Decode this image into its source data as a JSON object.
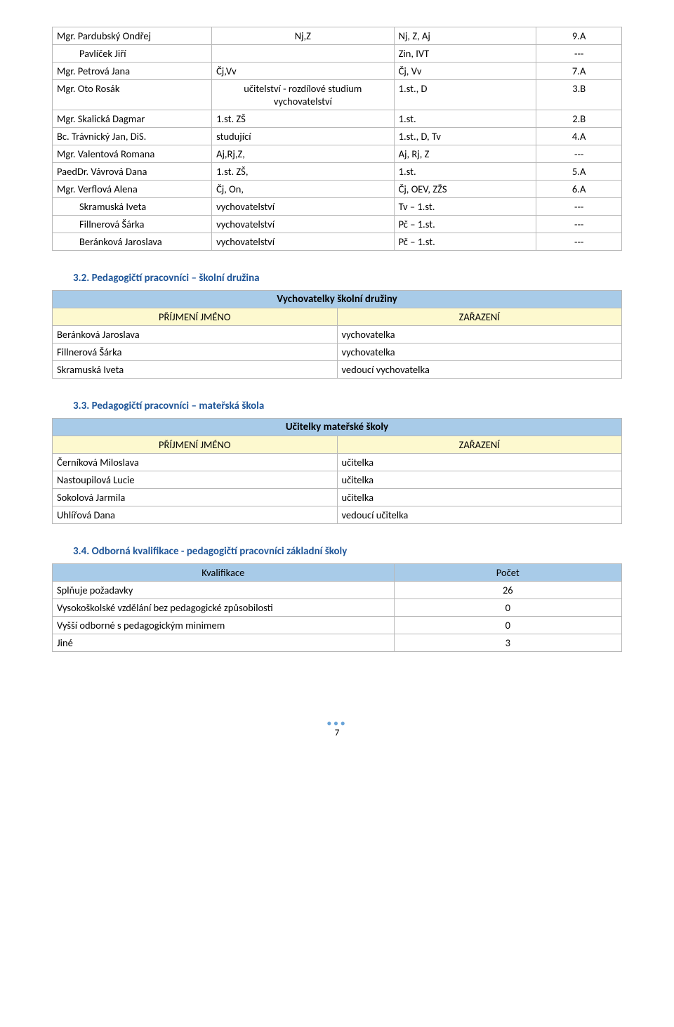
{
  "table1": {
    "rows": [
      [
        "Mgr. Pardubský Ondřej",
        "Nj,Z",
        "Nj, Z, Aj",
        "9.A"
      ],
      [
        "Pavlíček Jiří",
        "",
        "Zin, IVT",
        "---"
      ],
      [
        "Mgr. Petrová Jana",
        "Čj,Vv",
        "Čj, Vv",
        "7.A"
      ],
      [
        "Mgr. Oto Rosák",
        "učitelství - rozdílové studium vychovatelství",
        "1.st., D",
        "3.B"
      ],
      [
        "Mgr. Skalická Dagmar",
        "1.st. ZŠ",
        "1.st.",
        "2.B"
      ],
      [
        "Bc.    Trávnický Jan,  DiS.",
        "studující",
        "1.st., D, Tv",
        "4.A"
      ],
      [
        "Mgr. Valentová Romana",
        "Aj,Rj,Z,",
        "Aj, Rj, Z",
        "---"
      ],
      [
        "PaedDr. Vávrová Dana",
        "1.st. ZŠ,",
        "1.st.",
        "5.A"
      ],
      [
        "Mgr. Verflová Alena",
        "Čj, On,",
        "Čj, OEV, ZŽS",
        "6.A"
      ],
      [
        "Skramuská Iveta",
        "vychovatelství",
        "Tv – 1.st.",
        "---"
      ],
      [
        "Fillnerová Šárka",
        "vychovatelství",
        "Pč – 1.st.",
        "---"
      ],
      [
        "Beránková Jaroslava",
        "vychovatelství",
        "Pč – 1.st.",
        "---"
      ]
    ],
    "indent_rows": [
      1,
      9,
      10,
      11
    ],
    "col2_center_rows": [
      0,
      3
    ]
  },
  "sec32": {
    "heading": "3.2. Pedagogičtí pracovníci – školní družina",
    "title": "Vychovatelky školní družiny",
    "hdr": [
      "PŘÍJMENÍ JMÉNO",
      "ZAŘAZENÍ"
    ],
    "rows": [
      [
        "Beránková Jaroslava",
        "vychovatelka"
      ],
      [
        "Fillnerová Šárka",
        "vychovatelka"
      ],
      [
        "Skramuská Iveta",
        "vedoucí vychovatelka"
      ]
    ]
  },
  "sec33": {
    "heading": "3.3. Pedagogičtí pracovníci – mateřská škola",
    "title": "Učitelky mateřské školy",
    "hdr": [
      "PŘÍJMENÍ JMÉNO",
      "ZAŘAZENÍ"
    ],
    "rows": [
      [
        "Černíková Miloslava",
        "učitelka"
      ],
      [
        "Nastoupilová Lucie",
        "učitelka"
      ],
      [
        "Sokolová Jarmila",
        "učitelka"
      ],
      [
        "Uhlířová Dana",
        "vedoucí učitelka"
      ]
    ]
  },
  "sec34": {
    "heading": "3.4. Odborná kvalifikace - pedagogičtí pracovníci základní školy",
    "hdr": [
      "Kvalifikace",
      "Počet"
    ],
    "rows": [
      [
        "Splňuje požadavky",
        "26"
      ],
      [
        "Vysokoškolské vzdělání bez pedagogické způsobilosti",
        "0"
      ],
      [
        "Vyšší odborné s pedagogickým minimem",
        "0"
      ],
      [
        "Jiné",
        "3"
      ]
    ]
  },
  "pagenum": "7",
  "colors": {
    "header_blue": "#a8cbe8",
    "header_yellow": "#fdf9cf",
    "heading_text": "#1f5699",
    "border": "#b8b8b8",
    "dots": "#6aa4d8"
  },
  "col_widths": {
    "table1": [
      "28%",
      "32%",
      "25%",
      "15%"
    ],
    "two_col": [
      "50%",
      "50%"
    ]
  }
}
